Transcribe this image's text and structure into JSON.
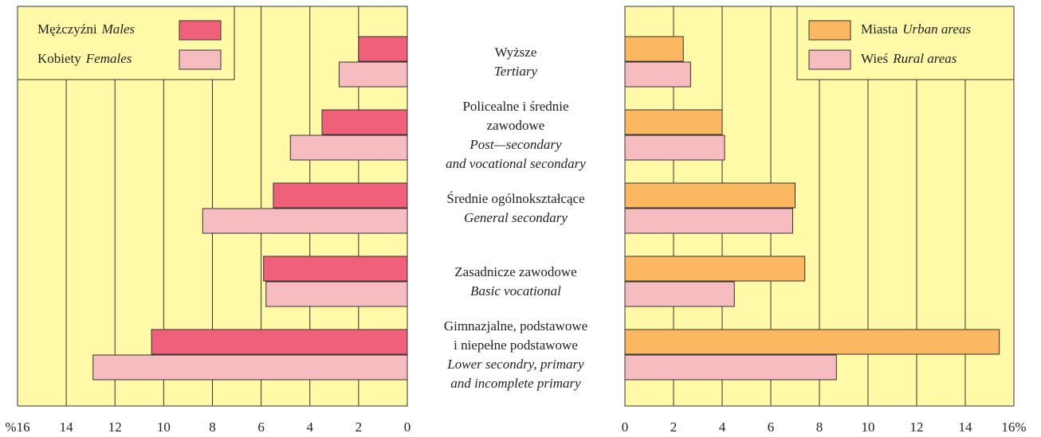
{
  "chart_data": [
    {
      "type": "bar",
      "orientation": "horizontal",
      "categories": [
        {
          "pl": [
            "Wyższe"
          ],
          "en": [
            "Tertiary"
          ]
        },
        {
          "pl": [
            "Policealne i średnie",
            "zawodowe"
          ],
          "en": [
            "Post—secondary",
            "and vocational secondary"
          ]
        },
        {
          "pl": [
            "Średnie ogólnokształcące"
          ],
          "en": [
            "General secondary"
          ]
        },
        {
          "pl": [
            "Zasadnicze zawodowe"
          ],
          "en": [
            "Basic vocational"
          ]
        },
        {
          "pl": [
            "Gimnazjalne, podstawowe",
            "i niepełne podstawowe"
          ],
          "en": [
            "Lower secondry, primary",
            "and incomplete primary"
          ]
        }
      ],
      "series": [
        {
          "name": "Mężczyźni",
          "name_en": "Males",
          "color": "#f0607a",
          "values": [
            2.0,
            3.5,
            5.5,
            5.9,
            10.5
          ]
        },
        {
          "name": "Kobiety",
          "name_en": "Females",
          "color": "#f7bcc0",
          "values": [
            2.8,
            4.8,
            8.4,
            5.8,
            12.9
          ]
        }
      ],
      "xlim": [
        16,
        0
      ],
      "xticks": [
        {
          "value": 16,
          "label": "%16"
        },
        14,
        12,
        10,
        8,
        6,
        4,
        2,
        0
      ],
      "grid": true,
      "legend": "upper left",
      "background": "#fff9a8"
    },
    {
      "type": "bar",
      "orientation": "horizontal",
      "series": [
        {
          "name": "Miasta",
          "name_en": "Urban areas",
          "color": "#fcb860",
          "values": [
            2.4,
            4.0,
            7.0,
            7.4,
            15.4
          ]
        },
        {
          "name": "Wieś",
          "name_en": "Rural areas",
          "color": "#f7bcc0",
          "values": [
            2.7,
            4.1,
            6.9,
            4.5,
            8.7
          ]
        }
      ],
      "xlim": [
        0,
        16
      ],
      "xticks": [
        0,
        2,
        4,
        6,
        8,
        10,
        12,
        14,
        {
          "value": 16,
          "label": "16%"
        }
      ],
      "grid": true,
      "legend": "upper right",
      "background": "#fff9a8"
    }
  ]
}
